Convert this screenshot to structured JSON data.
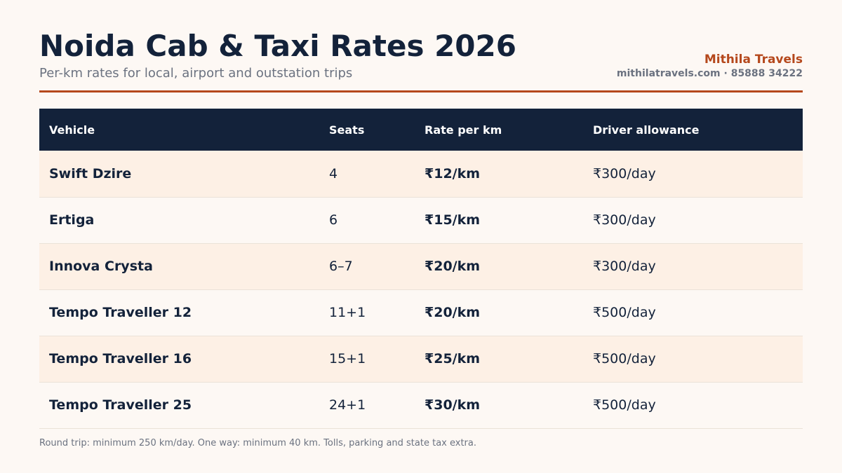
{
  "header": {
    "title": "Noida Cab & Taxi Rates 2026",
    "subtitle": "Per-km rates for local, airport and outstation trips",
    "brand_name": "Mithila Travels",
    "brand_contact": "mithilatravels.com · 85888 34222"
  },
  "table": {
    "columns": [
      "Vehicle",
      "Seats",
      "Rate per km",
      "Driver allowance"
    ],
    "rows": [
      {
        "vehicle": "Swift Dzire",
        "seats": "4",
        "rate": "₹12/km",
        "allowance": "₹300/day"
      },
      {
        "vehicle": "Ertiga",
        "seats": "6",
        "rate": "₹15/km",
        "allowance": "₹300/day"
      },
      {
        "vehicle": "Innova Crysta",
        "seats": "6–7",
        "rate": "₹20/km",
        "allowance": "₹300/day"
      },
      {
        "vehicle": "Tempo Traveller 12",
        "seats": "11+1",
        "rate": "₹20/km",
        "allowance": "₹500/day"
      },
      {
        "vehicle": "Tempo Traveller 16",
        "seats": "15+1",
        "rate": "₹25/km",
        "allowance": "₹500/day"
      },
      {
        "vehicle": "Tempo Traveller 25",
        "seats": "24+1",
        "rate": "₹30/km",
        "allowance": "₹500/day"
      }
    ]
  },
  "footnote": "Round trip: minimum 250 km/day. One way: minimum 40 km. Tolls, parking and state tax extra.",
  "colors": {
    "navy": "#13223a",
    "accent": "#b5481c",
    "row_tint": "#fdf0e5",
    "background": "#fdf8f4"
  }
}
